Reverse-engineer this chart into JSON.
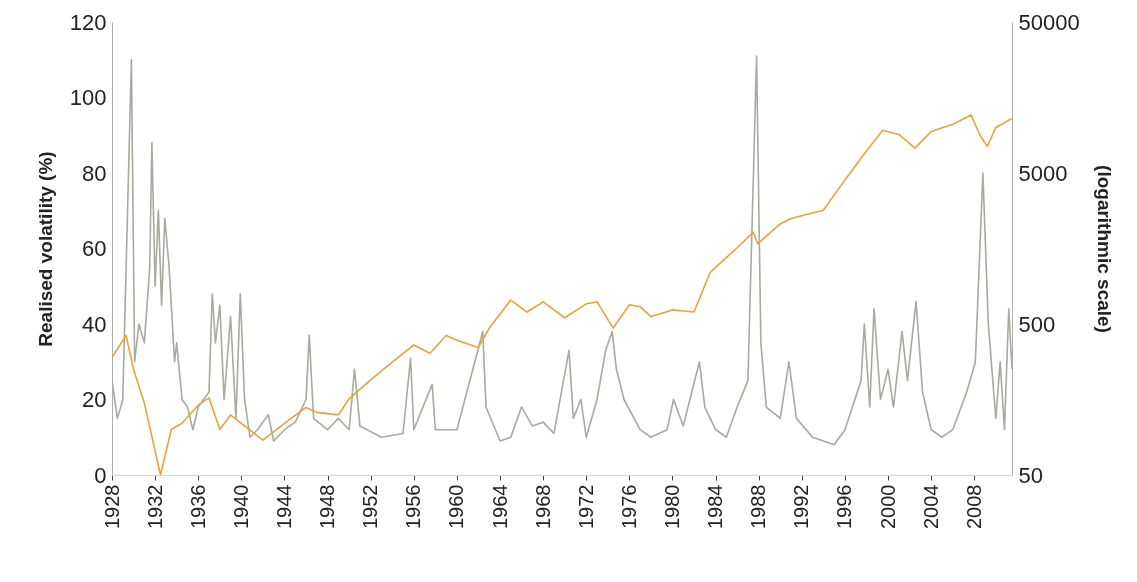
{
  "chart_data": {
    "type": "line",
    "ylabel": "Realised volatility (%)",
    "y2label": "(logarithmic scale)",
    "xlim": [
      1928,
      2011.5
    ],
    "xticks": [
      1928,
      1932,
      1936,
      1940,
      1944,
      1948,
      1952,
      1956,
      1960,
      1964,
      1968,
      1972,
      1976,
      1980,
      1984,
      1988,
      1992,
      1996,
      2000,
      2004,
      2008
    ],
    "ylim": [
      0,
      120
    ],
    "yticks": [
      0,
      20,
      40,
      60,
      80,
      100,
      120
    ],
    "y2lim": [
      50,
      50000
    ],
    "y2ticks": [
      50,
      500,
      5000,
      50000
    ],
    "log": "y2",
    "grid": false,
    "series": [
      {
        "color": "#a8aa9e",
        "x": [
          1928,
          1928.5,
          1929,
          1929.8,
          1930.1,
          1930.5,
          1931,
          1931.5,
          1931.7,
          1932,
          1932.3,
          1932.6,
          1932.9,
          1933.3,
          1933.8,
          1934,
          1934.5,
          1935,
          1935.5,
          1936,
          1937,
          1937.3,
          1937.6,
          1938,
          1938.4,
          1939,
          1939.5,
          1939.9,
          1940.3,
          1940.8,
          1941.5,
          1942.5,
          1943,
          1944,
          1945,
          1946,
          1946.3,
          1946.7,
          1948,
          1949,
          1950,
          1950.5,
          1951,
          1953,
          1955,
          1955.7,
          1956,
          1957.7,
          1958,
          1960,
          1962.4,
          1962.7,
          1964,
          1965,
          1966,
          1967,
          1968,
          1969,
          1970.4,
          1970.8,
          1971.5,
          1972,
          1973,
          1973.8,
          1974.4,
          1974.8,
          1975.5,
          1977,
          1978,
          1979.5,
          1980.1,
          1981,
          1982.5,
          1983,
          1984,
          1985,
          1986,
          1987,
          1987.8,
          1988.2,
          1988.7,
          1990,
          1990.8,
          1991.5,
          1993,
          1995,
          1996,
          1997.5,
          1997.8,
          1998.3,
          1998.7,
          1999.3,
          2000,
          2000.5,
          2001.3,
          2001.8,
          2002.6,
          2003.2,
          2004,
          2005,
          2006,
          2007.3,
          2008.1,
          2008.8,
          2009.3,
          2010,
          2010.4,
          2010.8,
          2011.2,
          2011.5
        ],
        "values": [
          25,
          15,
          20,
          110,
          30,
          40,
          35,
          55,
          88,
          50,
          70,
          45,
          68,
          55,
          30,
          35,
          20,
          18,
          12,
          18,
          22,
          48,
          35,
          45,
          20,
          42,
          15,
          48,
          20,
          10,
          12,
          16,
          9,
          12,
          14,
          20,
          37,
          15,
          12,
          15,
          12,
          28,
          13,
          10,
          11,
          31,
          12,
          24,
          12,
          12,
          38,
          18,
          9,
          10,
          18,
          13,
          14,
          11,
          33,
          15,
          20,
          10,
          20,
          33,
          38,
          28,
          20,
          12,
          10,
          12,
          20,
          13,
          30,
          18,
          12,
          10,
          18,
          25,
          111,
          35,
          18,
          15,
          30,
          15,
          10,
          8,
          12,
          25,
          40,
          18,
          44,
          20,
          28,
          18,
          38,
          25,
          46,
          22,
          12,
          10,
          12,
          22,
          30,
          80,
          40,
          15,
          30,
          12,
          44,
          28
        ]
      },
      {
        "color": "#e8a33a",
        "axis": "y2",
        "x": [
          1928,
          1929.3,
          1930,
          1931,
          1932.5,
          1933.5,
          1934.5,
          1936,
          1937,
          1938,
          1939,
          1940,
          1942,
          1944,
          1946,
          1947,
          1949,
          1950,
          1952,
          1954,
          1956,
          1957.5,
          1959,
          1960,
          1962,
          1963,
          1965,
          1966.5,
          1968,
          1970,
          1972,
          1973,
          1974.5,
          1976,
          1977,
          1978,
          1980,
          1982,
          1983.5,
          1986,
          1987.5,
          1987.9,
          1990,
          1991,
          1994,
          1996,
          1998,
          1999.5,
          2001,
          2002.5,
          2004,
          2006,
          2007.7,
          2008.5,
          2009.2,
          2010,
          2011.5
        ],
        "values": [
          300,
          420,
          250,
          150,
          50,
          100,
          110,
          145,
          162,
          100,
          125,
          110,
          85,
          110,
          140,
          130,
          125,
          160,
          213,
          280,
          363,
          320,
          420,
          390,
          350,
          470,
          720,
          600,
          700,
          550,
          680,
          700,
          470,
          670,
          650,
          560,
          620,
          600,
          1100,
          1600,
          2030,
          1700,
          2300,
          2500,
          2830,
          4500,
          7000,
          9600,
          9000,
          7300,
          9400,
          10500,
          12100,
          9000,
          7500,
          10000,
          11500
        ]
      }
    ]
  }
}
